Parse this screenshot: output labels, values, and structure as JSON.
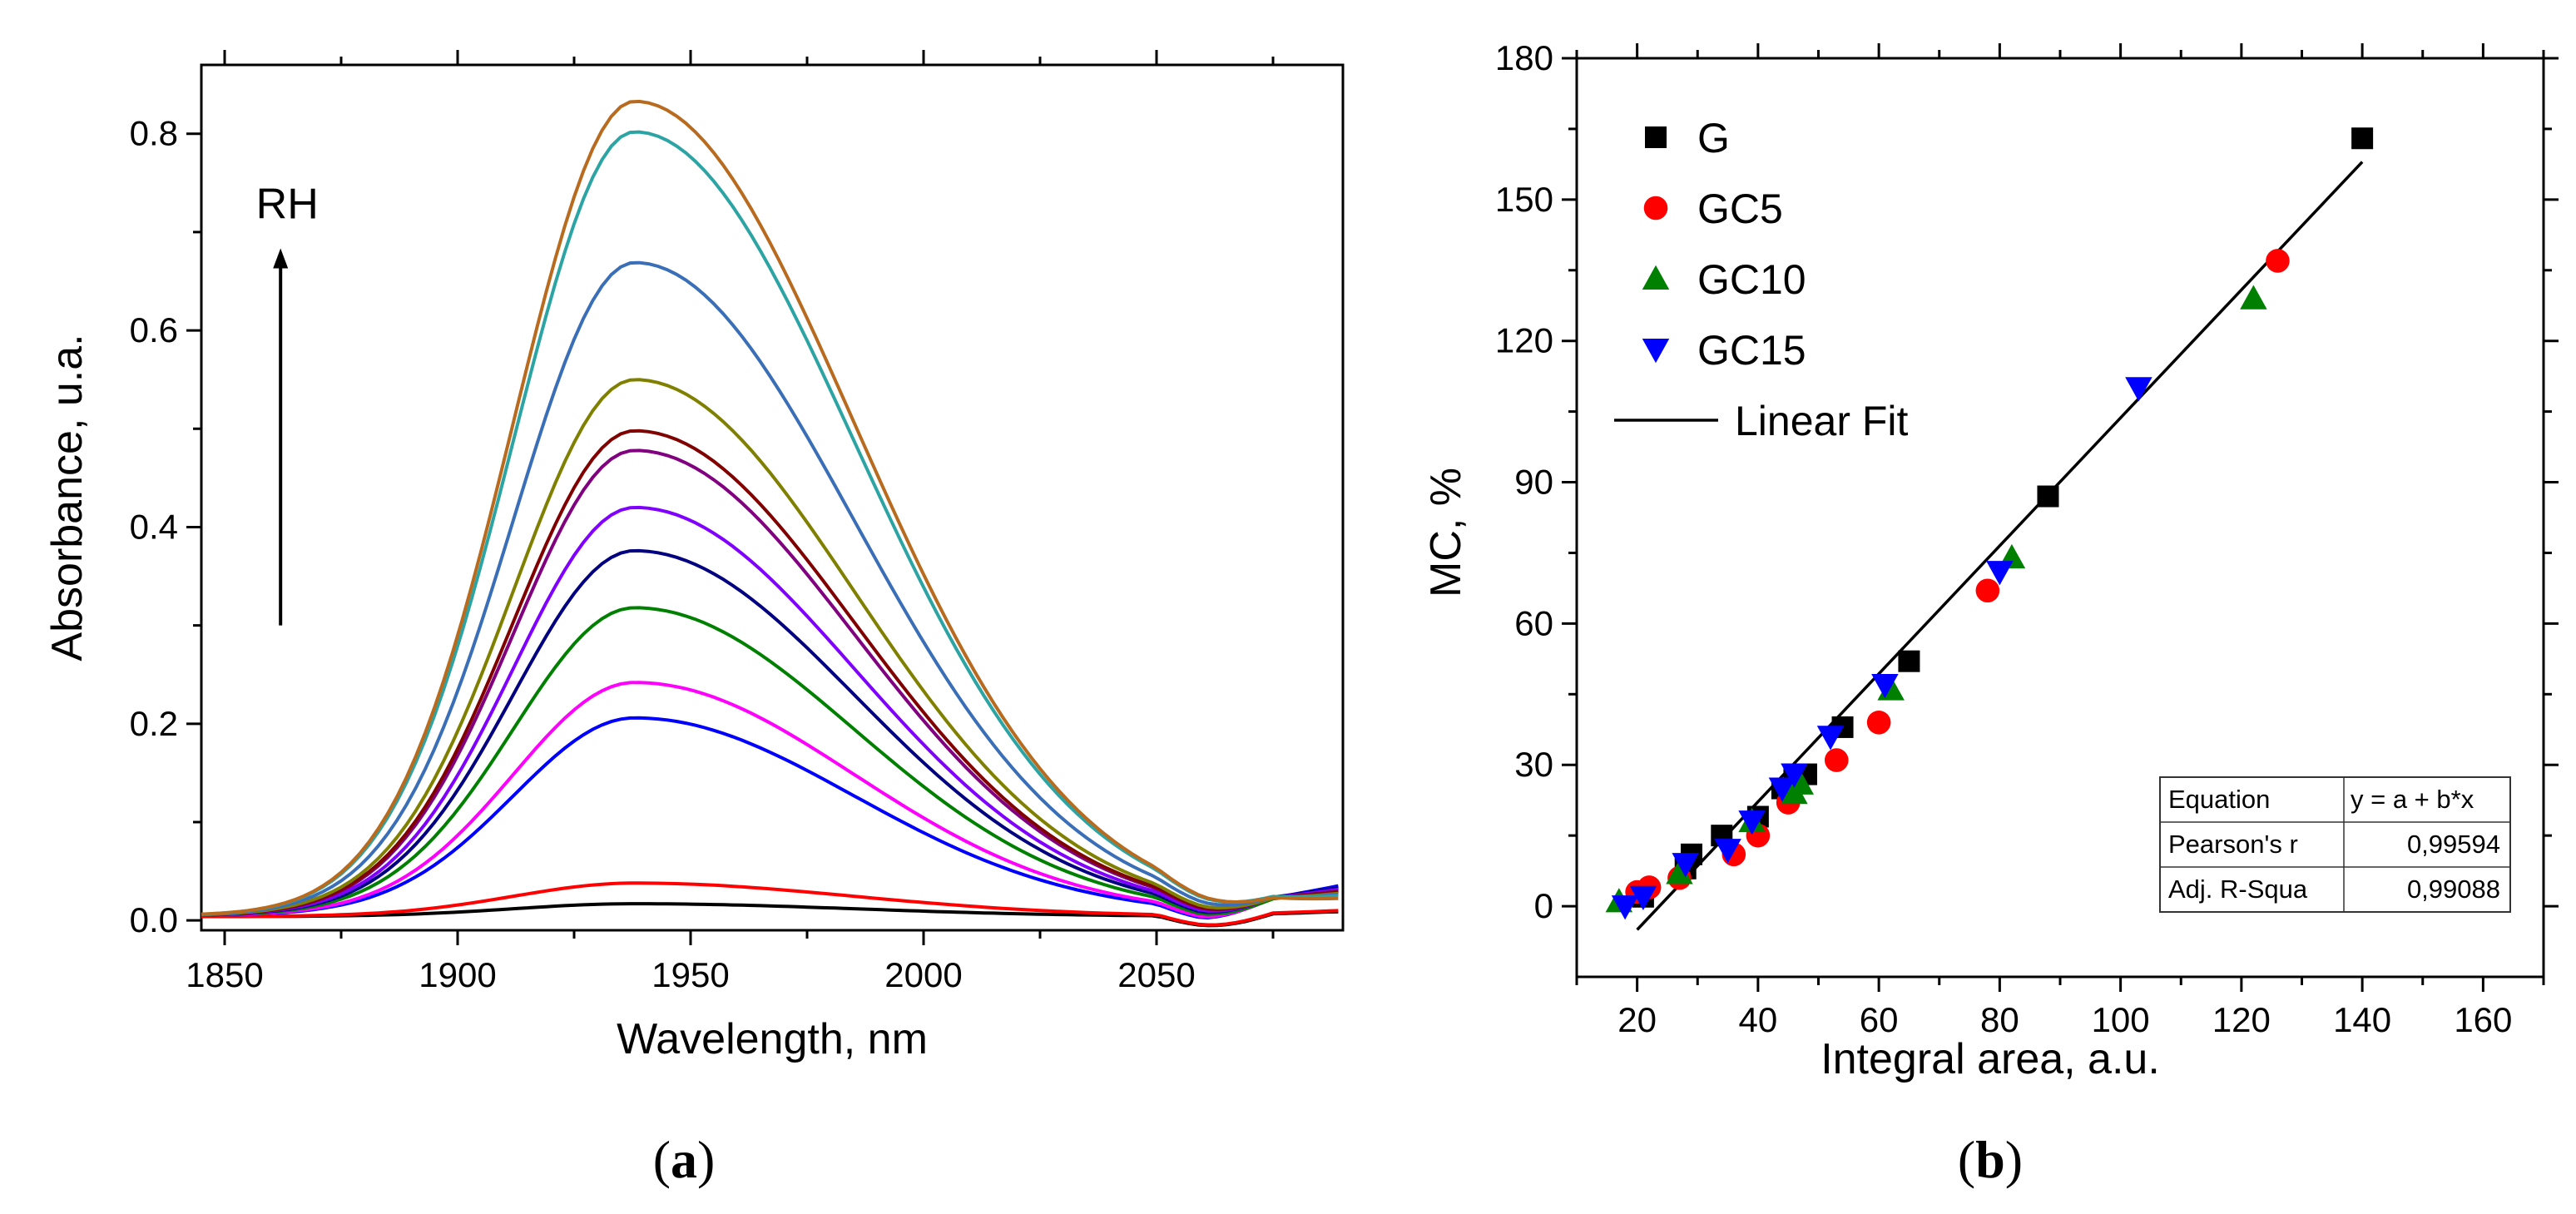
{
  "chart_data": [
    {
      "id": "a",
      "type": "line",
      "panel_label": "a",
      "xlabel": "Wavelength, nm",
      "ylabel": "Absorbance, u.a.",
      "xlim": [
        1845,
        2090
      ],
      "ylim": [
        -0.01,
        0.87
      ],
      "xticks": [
        1850,
        1900,
        1950,
        2000,
        2050
      ],
      "yticks": [
        0.0,
        0.2,
        0.4,
        0.6,
        0.8
      ],
      "annotation": "RH",
      "annotation_arrow_y": [
        0.3,
        0.68
      ],
      "annotation_x": 1862,
      "grid": false,
      "series": [
        {
          "name": "black",
          "color": "#000000",
          "peak": 0.017,
          "base": 0.004,
          "tail": 0.005
        },
        {
          "name": "red",
          "color": "#ff0000",
          "peak": 0.038,
          "base": 0.004,
          "tail": 0.006
        },
        {
          "name": "blue",
          "color": "#0000ff",
          "peak": 0.206,
          "base": 0.005,
          "tail": 0.03
        },
        {
          "name": "magenta",
          "color": "#ff00ff",
          "peak": 0.242,
          "base": 0.005,
          "tail": 0.028
        },
        {
          "name": "green",
          "color": "#008000",
          "peak": 0.318,
          "base": 0.005,
          "tail": 0.025
        },
        {
          "name": "navy",
          "color": "#000080",
          "peak": 0.376,
          "base": 0.005,
          "tail": 0.027
        },
        {
          "name": "violet",
          "color": "#8000ff",
          "peak": 0.42,
          "base": 0.005,
          "tail": 0.025
        },
        {
          "name": "purple",
          "color": "#800080",
          "peak": 0.478,
          "base": 0.005,
          "tail": 0.023
        },
        {
          "name": "maroon",
          "color": "#800000",
          "peak": 0.498,
          "base": 0.005,
          "tail": 0.022
        },
        {
          "name": "olive",
          "color": "#808000",
          "peak": 0.55,
          "base": 0.005,
          "tail": 0.02
        },
        {
          "name": "steelblue",
          "color": "#3a6fb8",
          "peak": 0.669,
          "base": 0.005,
          "tail": 0.018
        },
        {
          "name": "teal",
          "color": "#2ca4a4",
          "peak": 0.802,
          "base": 0.005,
          "tail": 0.016
        },
        {
          "name": "brown",
          "color": "#b86a1e",
          "peak": 0.833,
          "base": 0.005,
          "tail": 0.013
        }
      ]
    },
    {
      "id": "b",
      "type": "scatter",
      "panel_label": "b",
      "xlabel": "Integral area, a.u.",
      "ylabel": "MC, %",
      "xlim": [
        10,
        170
      ],
      "ylim": [
        -15,
        180
      ],
      "xticks": [
        20,
        40,
        60,
        80,
        100,
        120,
        140,
        160
      ],
      "yticks": [
        0,
        30,
        60,
        90,
        120,
        150,
        180
      ],
      "grid": false,
      "legend_position": "top-left",
      "series": [
        {
          "name": "G",
          "marker": "square",
          "color": "#000000",
          "points": [
            [
              21,
              2
            ],
            [
              28,
              8
            ],
            [
              29,
              11
            ],
            [
              34,
              15
            ],
            [
              40,
              19
            ],
            [
              44,
              25
            ],
            [
              46,
              28
            ],
            [
              48,
              28
            ],
            [
              54,
              38
            ],
            [
              65,
              52
            ],
            [
              88,
              87
            ],
            [
              140,
              163
            ]
          ]
        },
        {
          "name": "GC5",
          "marker": "circle",
          "color": "#ff0000",
          "points": [
            [
              20,
              3
            ],
            [
              22,
              4
            ],
            [
              27,
              6
            ],
            [
              36,
              11
            ],
            [
              40,
              15
            ],
            [
              45,
              22
            ],
            [
              53,
              31
            ],
            [
              60,
              39
            ],
            [
              78,
              67
            ],
            [
              126,
              137
            ]
          ]
        },
        {
          "name": "GC10",
          "marker": "triangle-up",
          "color": "#008000",
          "points": [
            [
              17,
              1
            ],
            [
              27,
              7
            ],
            [
              39,
              18
            ],
            [
              46,
              24
            ],
            [
              47,
              26
            ],
            [
              62,
              46
            ],
            [
              82,
              74
            ],
            [
              122,
              129
            ]
          ]
        },
        {
          "name": "GC15",
          "marker": "triangle-down",
          "color": "#0000ff",
          "points": [
            [
              18,
              0
            ],
            [
              21,
              2
            ],
            [
              28,
              9
            ],
            [
              35,
              12
            ],
            [
              39,
              18
            ],
            [
              44,
              25
            ],
            [
              46,
              28
            ],
            [
              52,
              36
            ],
            [
              61,
              47
            ],
            [
              80,
              71
            ],
            [
              103,
              110
            ]
          ]
        }
      ],
      "fit": {
        "name": "Linear Fit",
        "color": "#000000",
        "x": [
          20,
          140
        ],
        "y": [
          -5,
          158
        ]
      },
      "stats_table": {
        "rows": [
          [
            "Equation",
            "y = a + b*x"
          ],
          [
            "Pearson's r",
            "0,99594"
          ],
          [
            "Adj. R-Squa",
            "0,99088"
          ]
        ]
      }
    }
  ]
}
